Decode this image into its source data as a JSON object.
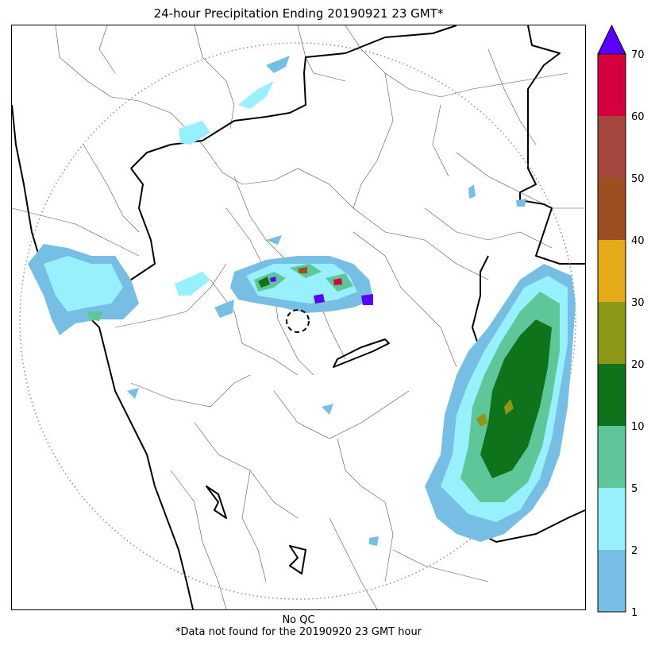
{
  "title": "24-hour Precipitation Ending 20190921 23 GMT*",
  "footer": {
    "line1": "No QC",
    "line2": "*Data not found for the 20190920 23 GMT hour"
  },
  "colorbar": {
    "levels": [
      1,
      2,
      5,
      10,
      20,
      30,
      40,
      50,
      60,
      70
    ],
    "colors": [
      "#77bee4",
      "#98f0fc",
      "#5ec698",
      "#0f731c",
      "#8c9617",
      "#e5aa18",
      "#9c4f21",
      "#a6473f",
      "#d6003f"
    ],
    "extend_color": "#5a00ff",
    "tick_labels": [
      "1",
      "2",
      "5",
      "10",
      "20",
      "30",
      "40",
      "50",
      "60",
      "70"
    ]
  },
  "map": {
    "radar_range_ring": "dotted",
    "radar_site_marker": "dashed-circle"
  }
}
